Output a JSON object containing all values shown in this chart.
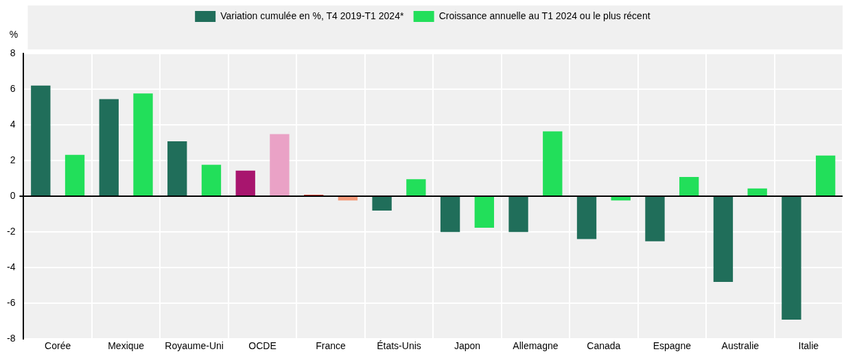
{
  "chart_data": {
    "type": "bar",
    "ylabel": "%",
    "categories": [
      "Corée",
      "Mexique",
      "Royaume-Uni",
      "OCDE",
      "France",
      "États-Unis",
      "Japon",
      "Allemagne",
      "Canada",
      "Espagne",
      "Australie",
      "Italie"
    ],
    "series": [
      {
        "name": "Variation cumulée en %, T4 2019-T1 2024*",
        "color": "#206e5a",
        "colors": [
          "#206e5a",
          "#206e5a",
          "#206e5a",
          "#a8156e",
          "#c0280a",
          "#206e5a",
          "#206e5a",
          "#206e5a",
          "#206e5a",
          "#206e5a",
          "#206e5a",
          "#206e5a"
        ],
        "values": [
          6.2,
          5.44,
          3.08,
          1.44,
          0.08,
          -0.8,
          -2.0,
          -2.0,
          -2.4,
          -2.52,
          -4.8,
          -6.92
        ]
      },
      {
        "name": "Croissance annuelle au T1 2024 ou le plus récent",
        "color": "#22df5a",
        "colors": [
          "#22df5a",
          "#22df5a",
          "#22df5a",
          "#eaa2c6",
          "#f39a7a",
          "#22df5a",
          "#22df5a",
          "#22df5a",
          "#22df5a",
          "#22df5a",
          "#22df5a",
          "#22df5a"
        ],
        "values": [
          2.32,
          5.76,
          1.76,
          3.48,
          -0.24,
          0.96,
          -1.76,
          3.64,
          -0.24,
          1.08,
          0.44,
          2.28
        ]
      }
    ],
    "ylim": [
      -8,
      8
    ],
    "yticks": [
      -8,
      -6,
      -4,
      -2,
      0,
      2,
      4,
      6,
      8
    ],
    "grid": true,
    "legend": "top"
  }
}
